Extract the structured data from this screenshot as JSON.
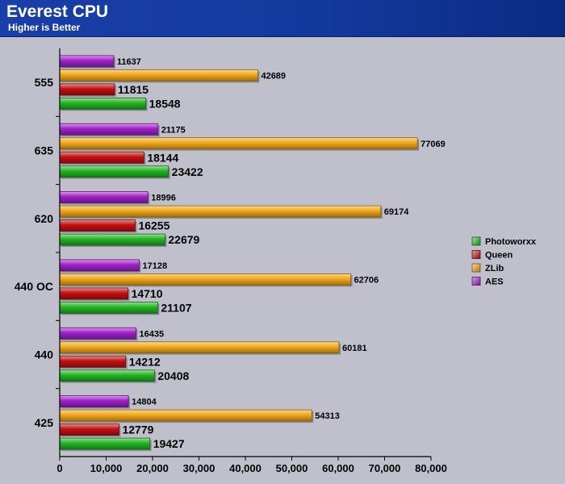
{
  "header": {
    "title": "Everest CPU",
    "subtitle": "Higher is Better"
  },
  "colors": {
    "background": "#c0c0cc",
    "header": "#123a9e",
    "plot_area": "#c0c0cc"
  },
  "chart_data": {
    "type": "bar",
    "orientation": "horizontal",
    "title": "Everest CPU",
    "subtitle": "Higher is Better",
    "xlabel": "",
    "ylabel": "",
    "xlim": [
      0,
      80000
    ],
    "x_ticks": [
      0,
      10000,
      20000,
      30000,
      40000,
      50000,
      60000,
      70000,
      80000
    ],
    "x_tick_labels": [
      "0",
      "10,000",
      "20,000",
      "30,000",
      "40,000",
      "50,000",
      "60,000",
      "70,000",
      "80,000"
    ],
    "categories": [
      "555",
      "635",
      "620",
      "440 OC",
      "440",
      "425"
    ],
    "series": [
      {
        "name": "Photoworxx",
        "color": "#22b422",
        "values": [
          18548,
          23422,
          22679,
          21107,
          20408,
          19427
        ]
      },
      {
        "name": "Queen",
        "color": "#c41010",
        "values": [
          11815,
          18144,
          16255,
          14710,
          14212,
          12779
        ]
      },
      {
        "name": "ZLib",
        "color": "#f2a818",
        "values": [
          42689,
          77069,
          69174,
          62706,
          60181,
          54313
        ]
      },
      {
        "name": "AES",
        "color": "#a020c8",
        "values": [
          11637,
          21175,
          18996,
          17128,
          16435,
          14804
        ]
      }
    ],
    "bar_order_top_to_bottom": [
      "AES",
      "ZLib",
      "Queen",
      "Photoworxx"
    ],
    "data_label_size": {
      "AES": "small",
      "ZLib": "small",
      "Queen": "large",
      "Photoworxx": "large"
    },
    "legend": {
      "position": "right",
      "entries": [
        "Photoworxx",
        "Queen",
        "ZLib",
        "AES"
      ]
    },
    "grid": false
  }
}
